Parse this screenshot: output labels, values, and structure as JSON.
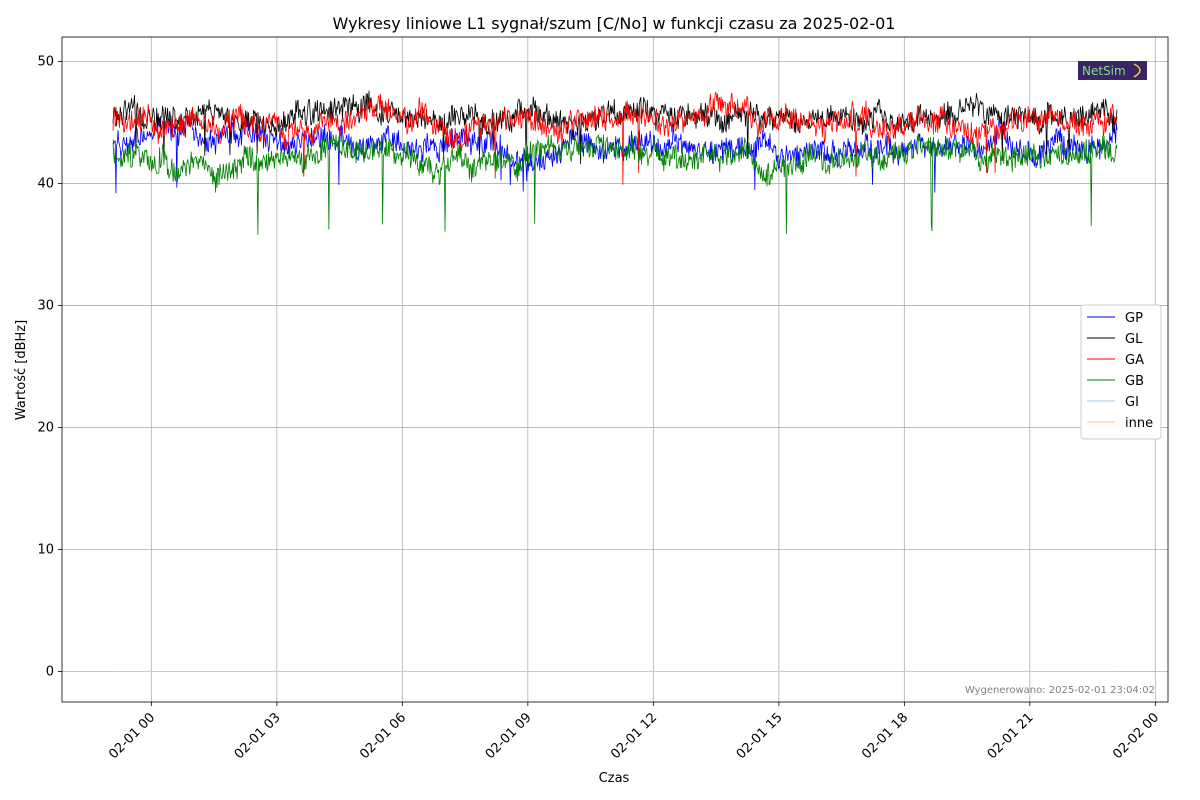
{
  "chart_data": {
    "type": "line",
    "title": "Wykresy liniowe L1 sygnał/szum [C/No] w funkcji czasu za 2025-02-01",
    "xlabel": "Czas",
    "ylabel": "Wartość [dBHz]",
    "x_range": [
      "2025-01-31 23:05",
      "2025-02-01 23:05"
    ],
    "x_ticks": [
      "02-01 00",
      "02-01 03",
      "02-01 06",
      "02-01 09",
      "02-01 12",
      "02-01 15",
      "02-01 18",
      "02-01 21",
      "02-02 00"
    ],
    "ylim": [
      -2.5,
      52
    ],
    "y_ticks": [
      "0",
      "10",
      "20",
      "30",
      "40",
      "50"
    ],
    "grid": true,
    "legend_position": "center-right",
    "series": [
      {
        "name": "GP",
        "color": "#0000ff",
        "approx_mean": 43.0,
        "approx_range": [
          39.2,
          45.5
        ]
      },
      {
        "name": "GL",
        "color": "#000000",
        "approx_mean": 45.5,
        "approx_range": [
          41.5,
          49.3
        ]
      },
      {
        "name": "GA",
        "color": "#ff0000",
        "approx_mean": 45.0,
        "approx_range": [
          39.7,
          47.8
        ]
      },
      {
        "name": "GB",
        "color": "#008000",
        "approx_mean": 42.3,
        "approx_range": [
          35.8,
          44.0
        ]
      },
      {
        "name": "GI",
        "color": "#a6c8e8",
        "approx_mean": 0,
        "approx_range": [
          0,
          0
        ]
      },
      {
        "name": "inne",
        "color": "#f5c89a",
        "approx_mean": 0,
        "approx_range": [
          0,
          0
        ]
      }
    ]
  },
  "footer_text": "Wygenerowano: 2025-02-01 23:04:02",
  "logo": {
    "text": "NetSim",
    "bg_color": "#3b2466",
    "text_color": "#7ee07e"
  }
}
